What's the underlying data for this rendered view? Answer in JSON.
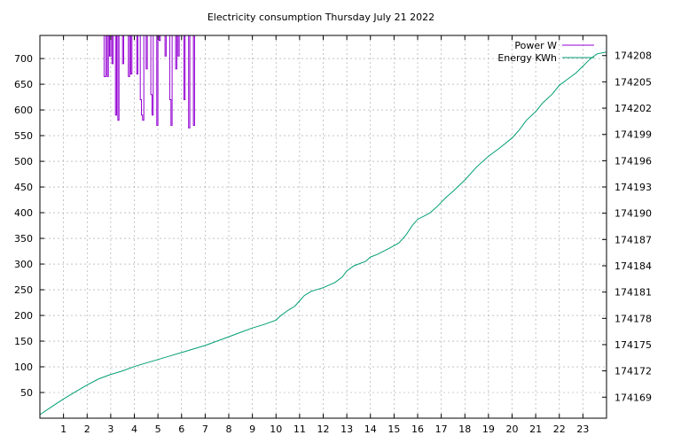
{
  "chart_data": {
    "type": "line",
    "title": "Electricity consumption Thursday July 21 2022",
    "xlabel": "",
    "ylabel": "",
    "y2label": "",
    "xlim": [
      0,
      24
    ],
    "ylim": [
      0,
      745
    ],
    "y2lim": [
      174166.6,
      174210.3
    ],
    "x_ticks": [
      1,
      2,
      3,
      4,
      5,
      6,
      7,
      8,
      9,
      10,
      11,
      12,
      13,
      14,
      15,
      16,
      17,
      18,
      19,
      20,
      21,
      22,
      23
    ],
    "y_ticks": [
      50,
      100,
      150,
      200,
      250,
      300,
      350,
      400,
      450,
      500,
      550,
      600,
      650,
      700
    ],
    "y2_ticks": [
      174169,
      174172,
      174175,
      174178,
      174181,
      174184,
      174187,
      174190,
      174193,
      174196,
      174199,
      174202,
      174205,
      174208
    ],
    "grid": true,
    "legend_position": "top-right",
    "series": [
      {
        "name": "Power W",
        "axis": "left",
        "color": "#9400d3",
        "x": [
          2.7,
          2.72,
          2.75,
          2.8,
          2.85,
          2.9,
          2.95,
          3.0,
          3.05,
          3.1,
          3.15,
          3.2,
          3.25,
          3.3,
          3.35,
          3.4,
          3.45,
          3.5,
          3.55,
          3.6,
          3.65,
          3.7,
          3.75,
          3.8,
          3.85,
          3.9,
          3.95,
          4.0,
          4.05,
          4.1,
          4.15,
          4.2,
          4.25,
          4.3,
          4.35,
          4.4,
          4.45,
          4.5,
          4.55,
          4.6,
          4.65,
          4.7,
          4.75,
          4.8,
          4.85,
          4.9,
          4.95,
          5.0,
          5.05,
          5.1,
          5.15,
          5.2,
          5.25,
          5.3,
          5.35,
          5.4,
          5.45,
          5.5,
          5.55,
          5.6,
          5.65,
          5.7,
          5.75,
          5.8,
          5.85,
          5.9,
          5.95,
          6.0,
          6.05,
          6.1,
          6.15,
          6.2,
          6.25,
          6.3,
          6.35,
          6.4,
          6.45,
          6.5,
          6.55,
          6.6,
          6.65,
          6.7,
          6.75,
          6.8,
          6.85,
          6.9,
          6.95,
          7.0,
          7.05,
          7.1,
          7.15,
          7.2,
          7.25,
          7.3
        ],
        "values": [
          745,
          665,
          665,
          745,
          665,
          745,
          705,
          745,
          690,
          745,
          745,
          590,
          745,
          580,
          745,
          745,
          745,
          690,
          745,
          745,
          745,
          745,
          665,
          745,
          670,
          745,
          745,
          745,
          745,
          670,
          745,
          745,
          620,
          590,
          580,
          745,
          745,
          680,
          745,
          745,
          745,
          630,
          590,
          745,
          745,
          745,
          570,
          745,
          735,
          745,
          745,
          745,
          745,
          705,
          745,
          745,
          745,
          620,
          570,
          745,
          745,
          745,
          680,
          745,
          705,
          745,
          745,
          745,
          745,
          620,
          745,
          745,
          745,
          565,
          745,
          745,
          745,
          570,
          745,
          745,
          745,
          745,
          745,
          745,
          745,
          745,
          745,
          745,
          745,
          745,
          745,
          745,
          745,
          745
        ]
      },
      {
        "name": "Energy KWh",
        "axis": "right",
        "color": "#009e73",
        "x": [
          0,
          0.5,
          1,
          1.5,
          2,
          2.5,
          3,
          3.5,
          4,
          4.5,
          5,
          5.5,
          6,
          6.5,
          7,
          7.5,
          8,
          8.5,
          9,
          9.5,
          10,
          10.2,
          10.5,
          10.8,
          11,
          11.2,
          11.5,
          12,
          12.5,
          12.8,
          13,
          13.3,
          13.8,
          14,
          14.3,
          14.8,
          15.2,
          15.5,
          15.8,
          16,
          16.5,
          16.8,
          17.2,
          17.5,
          18,
          18.5,
          19,
          19.5,
          20,
          20.3,
          20.6,
          21,
          21.3,
          21.7,
          22,
          22.3,
          22.7,
          23,
          23.3,
          23.6,
          24
        ],
        "values": [
          174167.0,
          174167.9,
          174168.8,
          174169.6,
          174170.4,
          174171.1,
          174171.6,
          174172.0,
          174172.5,
          174172.9,
          174173.3,
          174173.7,
          174174.1,
          174174.5,
          174174.9,
          174175.4,
          174175.9,
          174176.4,
          174176.9,
          174177.3,
          174177.8,
          174178.3,
          174178.9,
          174179.4,
          174180.0,
          174180.6,
          174181.1,
          174181.5,
          174182.1,
          174182.7,
          174183.4,
          174184.0,
          174184.5,
          174185.0,
          174185.3,
          174186.0,
          174186.6,
          174187.5,
          174188.7,
          174189.3,
          174190.0,
          174190.7,
          174191.8,
          174192.5,
          174193.8,
          174195.3,
          174196.5,
          174197.5,
          174198.6,
          174199.5,
          174200.6,
          174201.6,
          174202.6,
          174203.6,
          174204.6,
          174205.2,
          174206.0,
          174206.8,
          174207.6,
          174208.2,
          174208.4
        ]
      }
    ]
  }
}
